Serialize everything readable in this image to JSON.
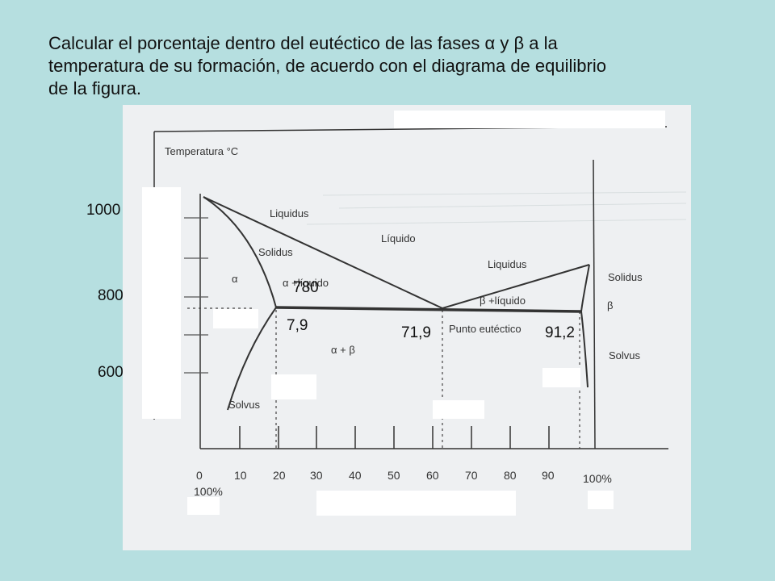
{
  "slide": {
    "title_lines": [
      "Calcular el porcentaje dentro del  eutéctico  de  las  fases  α  y  β  a  la",
      "temperatura de su formación, de acuerdo con el diagrama de equilibrio",
      "de la figura."
    ]
  },
  "diagram": {
    "axis_title": "Temperatura °C",
    "region_labels": {
      "liquidus_left": "Liquidus",
      "solidus_left": "Solidus",
      "liquido": "Líquido",
      "alpha": "α",
      "alpha_liquido": "α +líquido",
      "liquidus_right": "Liquidus",
      "beta_liquido": "β +líquido",
      "punto_eutectico": "Punto eutéctico",
      "alpha_beta": "α + β",
      "solidus_right": "Solidus",
      "beta": "β",
      "solvus_right": "Solvus",
      "solvus_left": "Solvus"
    },
    "x_ticks": [
      "0",
      "10",
      "20",
      "30",
      "40",
      "50",
      "60",
      "70",
      "80",
      "90",
      "100%"
    ],
    "x_left_pct": "100%",
    "temperature_labels": [
      "1000",
      "800",
      "600"
    ],
    "eutectic_temperature": "780",
    "compositions": [
      "7,9",
      "71,9",
      "91,2"
    ]
  }
}
